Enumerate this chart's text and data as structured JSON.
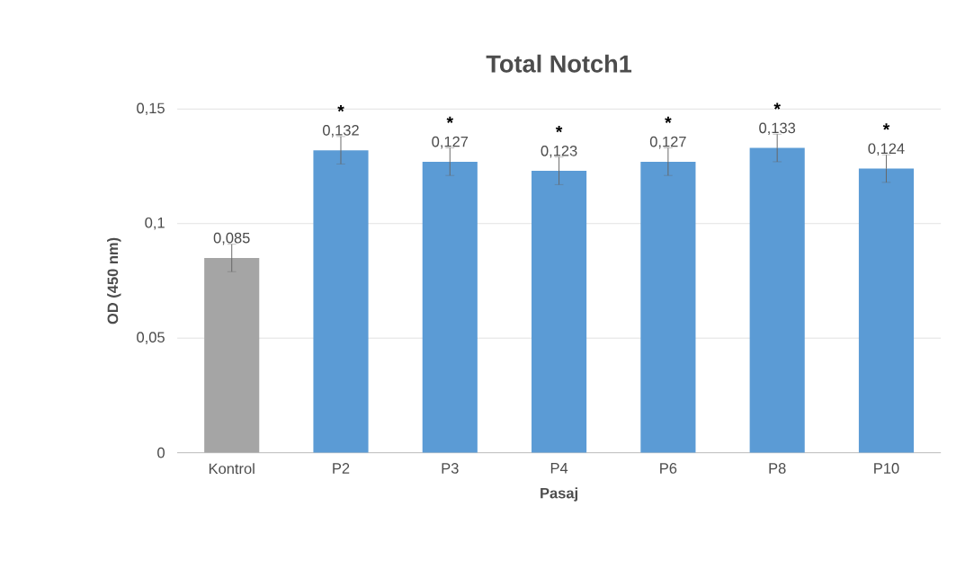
{
  "chart_data": {
    "type": "bar",
    "title": "Total Notch1",
    "xlabel": "Pasaj",
    "ylabel": "OD (450 nm)",
    "categories": [
      "Kontrol",
      "P2",
      "P3",
      "P4",
      "P6",
      "P8",
      "P10"
    ],
    "values": [
      0.085,
      0.132,
      0.127,
      0.123,
      0.127,
      0.133,
      0.124
    ],
    "value_labels": [
      "0,085",
      "0,132",
      "0,127",
      "0,123",
      "0,127",
      "0,133",
      "0,124"
    ],
    "errors": [
      0.006,
      0.006,
      0.006,
      0.006,
      0.006,
      0.006,
      0.006
    ],
    "colors": [
      "#a5a5a5",
      "#5b9bd5",
      "#5b9bd5",
      "#5b9bd5",
      "#5b9bd5",
      "#5b9bd5",
      "#5b9bd5"
    ],
    "ylim": [
      0,
      0.15
    ],
    "yticks": [
      0,
      {
        "value": 0.05,
        "label": "0,05"
      },
      {
        "value": 0.1,
        "label": "0,1"
      },
      {
        "value": 0.15,
        "label": "0,15"
      }
    ],
    "grid": "y",
    "annotations": [
      {
        "text": "*",
        "x": "P2",
        "y": 0.132
      },
      {
        "text": "*",
        "x": "P3",
        "y": 0.127
      },
      {
        "text": "*",
        "x": "P4",
        "y": 0.123
      },
      {
        "text": "*",
        "x": "P6",
        "y": 0.127
      },
      {
        "text": "*",
        "x": "P8",
        "y": 0.133
      },
      {
        "text": "*",
        "x": "P10",
        "y": 0.124
      }
    ]
  }
}
